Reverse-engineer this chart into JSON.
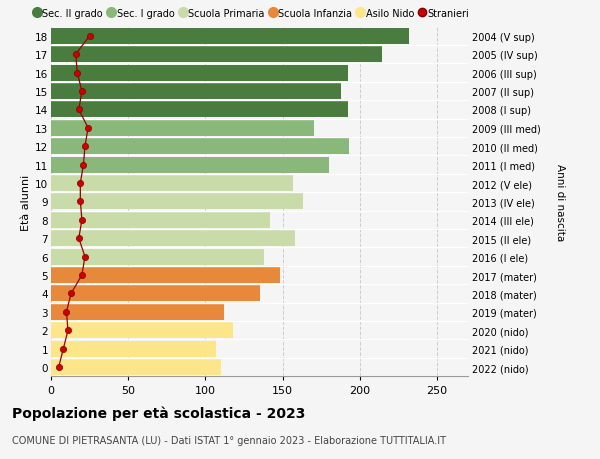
{
  "ages": [
    0,
    1,
    2,
    3,
    4,
    5,
    6,
    7,
    8,
    9,
    10,
    11,
    12,
    13,
    14,
    15,
    16,
    17,
    18
  ],
  "bar_values": [
    110,
    107,
    118,
    112,
    135,
    148,
    138,
    158,
    142,
    163,
    157,
    180,
    193,
    170,
    192,
    188,
    192,
    214,
    232
  ],
  "bar_colors": [
    "#fde58a",
    "#fde58a",
    "#fde58a",
    "#e8883a",
    "#e8883a",
    "#e8883a",
    "#c8dba8",
    "#c8dba8",
    "#c8dba8",
    "#c8dba8",
    "#c8dba8",
    "#8ab87a",
    "#8ab87a",
    "#8ab87a",
    "#4a7c3f",
    "#4a7c3f",
    "#4a7c3f",
    "#4a7c3f",
    "#4a7c3f"
  ],
  "stranieri": [
    5,
    8,
    11,
    10,
    13,
    20,
    22,
    18,
    20,
    19,
    19,
    21,
    22,
    24,
    18,
    20,
    17,
    16,
    25
  ],
  "right_labels": [
    "2022 (nido)",
    "2021 (nido)",
    "2020 (nido)",
    "2019 (mater)",
    "2018 (mater)",
    "2017 (mater)",
    "2016 (I ele)",
    "2015 (II ele)",
    "2014 (III ele)",
    "2013 (IV ele)",
    "2012 (V ele)",
    "2011 (I med)",
    "2010 (II med)",
    "2009 (III med)",
    "2008 (I sup)",
    "2007 (II sup)",
    "2006 (III sup)",
    "2005 (IV sup)",
    "2004 (V sup)"
  ],
  "legend_labels": [
    "Sec. II grado",
    "Sec. I grado",
    "Scuola Primaria",
    "Scuola Infanzia",
    "Asilo Nido",
    "Stranieri"
  ],
  "legend_colors": [
    "#4a7c3f",
    "#8ab87a",
    "#c8dba8",
    "#e8883a",
    "#fde58a",
    "#cc0000"
  ],
  "ylabel": "Età alunni",
  "right_ylabel": "Anni di nascita",
  "title": "Popolazione per età scolastica - 2023",
  "subtitle": "COMUNE DI PIETRASANTA (LU) - Dati ISTAT 1° gennaio 2023 - Elaborazione TUTTITALIA.IT",
  "xlim": [
    0,
    270
  ],
  "xticks": [
    0,
    50,
    100,
    150,
    200,
    250
  ],
  "background_color": "#f5f5f5",
  "grid_color": "#cccccc",
  "bar_height": 0.88
}
